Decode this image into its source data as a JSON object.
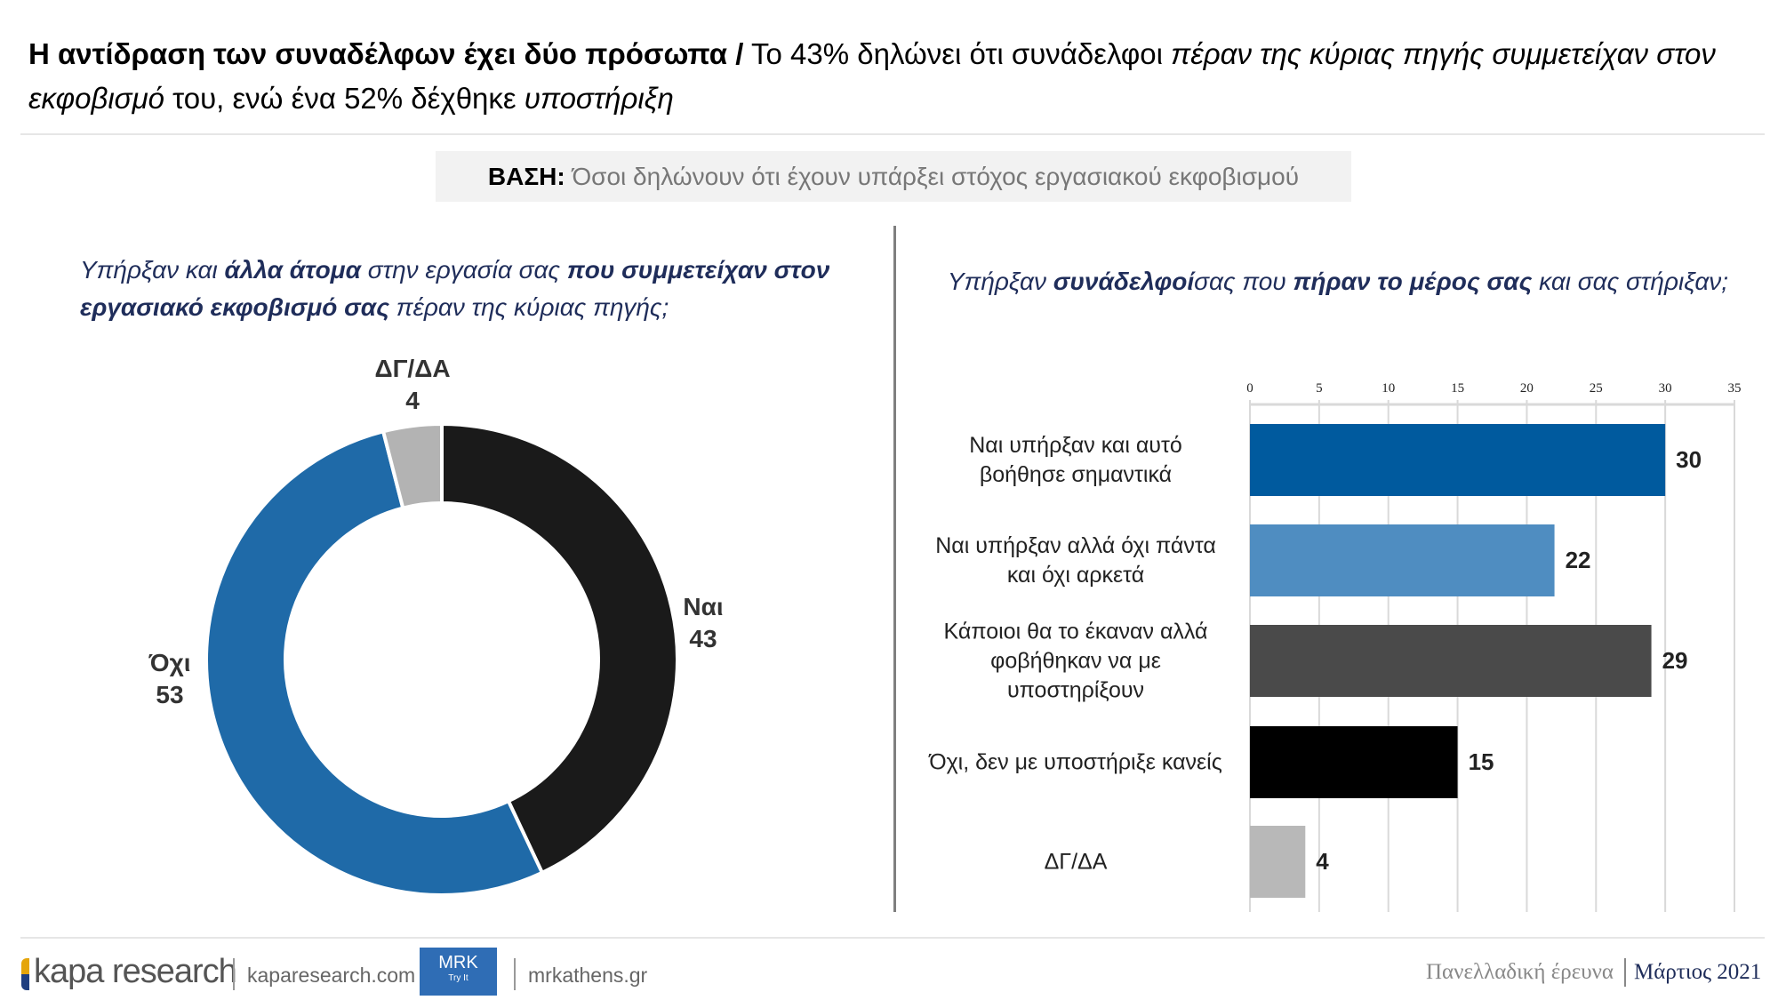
{
  "title": {
    "bold": "Η αντίδραση των συναδέλφων έχει δύο πρόσωπα /",
    "t1": " Το 43% δηλώνει ότι συνάδελφοι ",
    "i1": "πέραν της κύριας πηγής συμμετείχαν στον εκφοβισμό",
    "t2": " του, ενώ ένα 52% δέχθηκε ",
    "i2": "υποστήριξη"
  },
  "base": {
    "label": "ΒΑΣΗ:",
    "text": " Όσοι δηλώνουν ότι έχουν υπάρξει στόχος εργασιακού εκφοβισμού"
  },
  "left_question": {
    "p1": "Υπήρξαν και ",
    "b1": "άλλα άτομα",
    "p2": " στην εργασία σας ",
    "b2": "που συμμετείχαν στον εργασιακό εκφοβισμό σας",
    "p3": " πέραν της κύριας πηγής;"
  },
  "right_question": {
    "p1": "Υπήρξαν ",
    "b1": "συνάδελφοί",
    "p2": "σας που ",
    "b2": "πήραν το μέρος σας",
    "p3": " και σας στήριξαν;"
  },
  "chart_data": [
    {
      "type": "pie",
      "subtype": "donut",
      "categories": [
        "Ναι",
        "Όχι",
        "ΔΓ/ΔΑ"
      ],
      "values": [
        43,
        53,
        4
      ],
      "colors": [
        "#1a1a1a",
        "#1f6aa8",
        "#b3b3b3"
      ]
    },
    {
      "type": "bar",
      "orientation": "horizontal",
      "categories": [
        "Ναι υπήρξαν και αυτό βοήθησε σημαντικά",
        "Ναι υπήρξαν αλλά όχι πάντα και όχι αρκετά",
        "Κάποιοι θα το έκαναν αλλά φοβήθηκαν να με υποστηρίξουν",
        "Όχι, δεν με υποστήριξε κανείς",
        "ΔΓ/ΔΑ"
      ],
      "values": [
        30,
        22,
        29,
        15,
        4
      ],
      "colors": [
        "#005a9e",
        "#4f8dc1",
        "#4a4a4a",
        "#000000",
        "#b8b8b8"
      ],
      "xlim": [
        0,
        35
      ],
      "ticks": [
        "0",
        "5",
        "10",
        "15",
        "20",
        "25",
        "30",
        "35"
      ],
      "grid": true
    }
  ],
  "footer": {
    "logo": "kapa research",
    "site1": "kaparesearch.com",
    "mrk": "MRK",
    "mrk_sub": "Try It",
    "site2": "mrkathens.gr",
    "survey": "Πανελλαδική έρευνα",
    "date": "Μάρτιος 2021"
  }
}
